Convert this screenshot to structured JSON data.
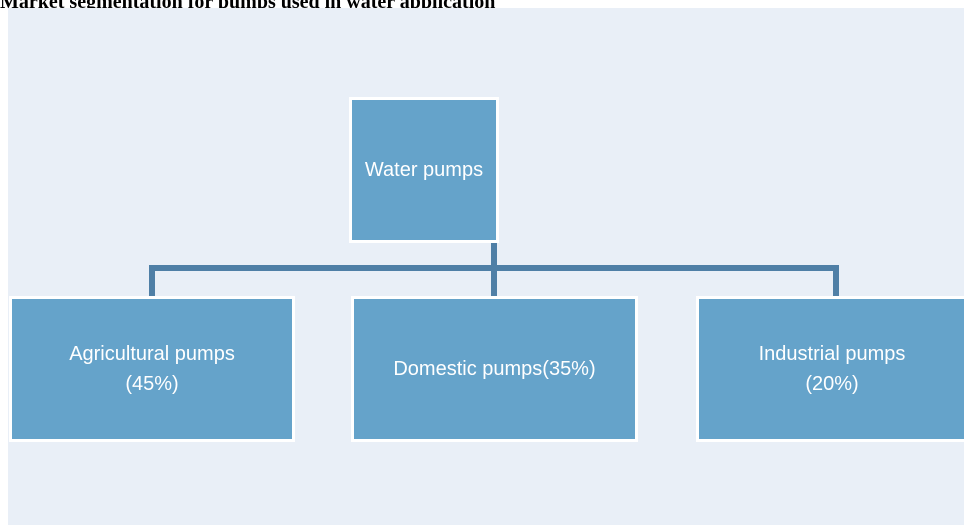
{
  "title": "Market segmentation for pumps used in water application",
  "nodes": [
    {
      "label": [
        "Water pumps"
      ]
    },
    {
      "label": [
        "Agricultural pumps",
        "(45%)"
      ]
    },
    {
      "label": [
        "Domestic pumps(35%)"
      ]
    },
    {
      "label": [
        "Industrial pumps",
        "(20%)"
      ]
    }
  ]
}
